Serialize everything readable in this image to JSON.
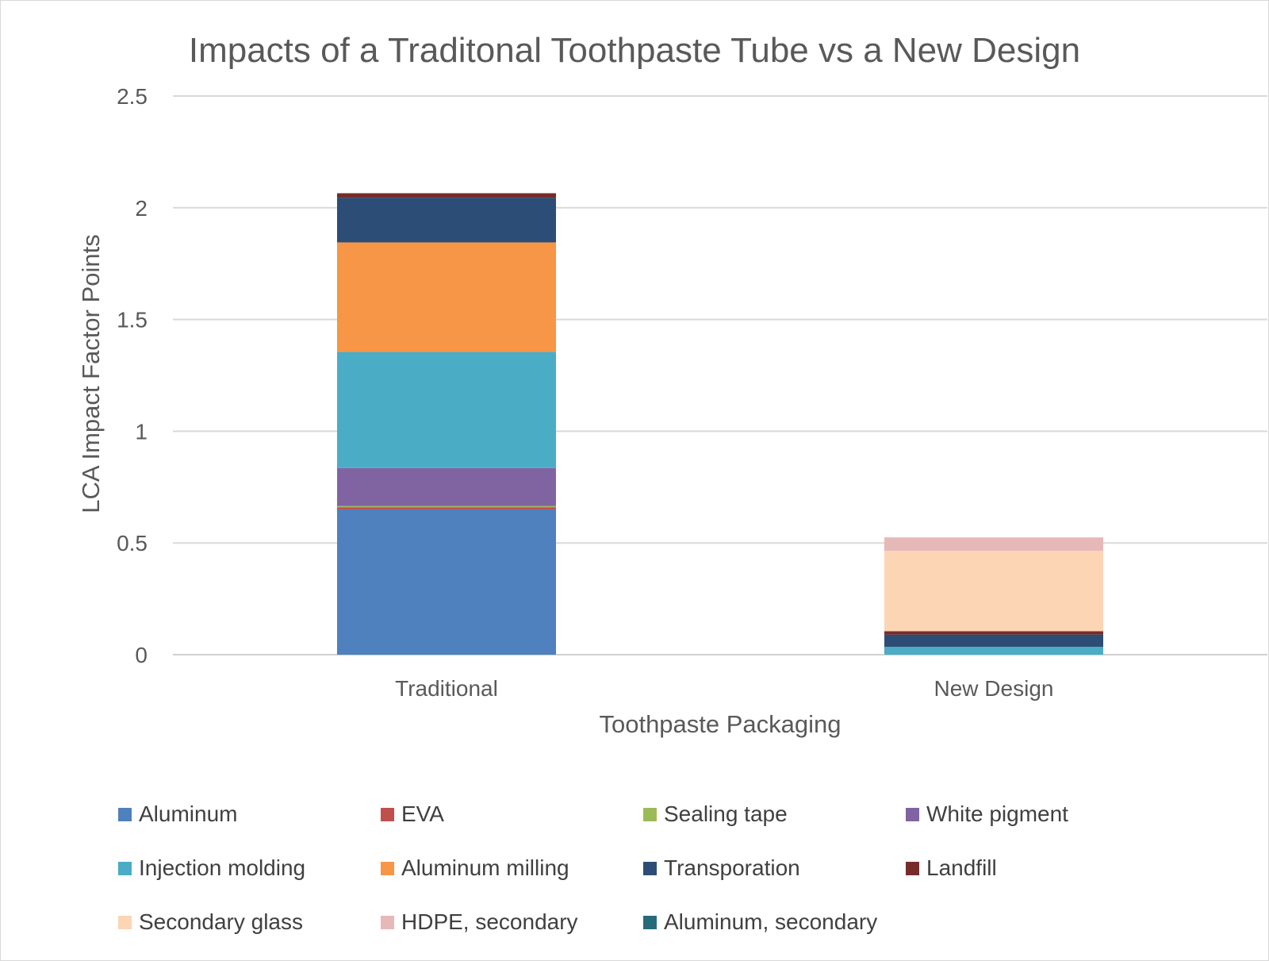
{
  "chart_data": {
    "type": "bar",
    "stacked": true,
    "title": "Impacts of a Traditonal Toothpaste Tube vs a New Design",
    "xlabel": "Toothpaste Packaging",
    "ylabel": "LCA Impact Factor Points",
    "ylim": [
      0,
      2.5
    ],
    "yticks": [
      "0",
      "0.5",
      "1",
      "1.5",
      "2",
      "2.5"
    ],
    "grid": true,
    "legend_position": "bottom",
    "categories": [
      "Traditional",
      "New Design"
    ],
    "series": [
      {
        "name": "Aluminum",
        "color": "#4e81bd",
        "values": [
          0.65,
          0
        ]
      },
      {
        "name": "EVA",
        "color": "#c0504d",
        "values": [
          0.01,
          0
        ]
      },
      {
        "name": "Sealing tape",
        "color": "#9bbb59",
        "values": [
          0.005,
          0
        ]
      },
      {
        "name": "White pigment",
        "color": "#8064a2",
        "values": [
          0.17,
          0
        ]
      },
      {
        "name": "Injection molding",
        "color": "#4bacc6",
        "values": [
          0.52,
          0.035
        ]
      },
      {
        "name": "Aluminum milling",
        "color": "#f79646",
        "values": [
          0.49,
          0
        ]
      },
      {
        "name": "Transporation",
        "color": "#2c4d75",
        "values": [
          0.2,
          0.055
        ]
      },
      {
        "name": "Landfill",
        "color": "#772c2a",
        "values": [
          0.02,
          0.015
        ]
      },
      {
        "name": "Secondary glass",
        "color": "#fcd5b5",
        "values": [
          0,
          0.36
        ]
      },
      {
        "name": "HDPE, secondary",
        "color": "#e6b9b8",
        "values": [
          0,
          0.06
        ]
      },
      {
        "name": "Aluminum, secondary",
        "color": "#276a7c",
        "values": [
          0,
          0
        ]
      }
    ]
  }
}
